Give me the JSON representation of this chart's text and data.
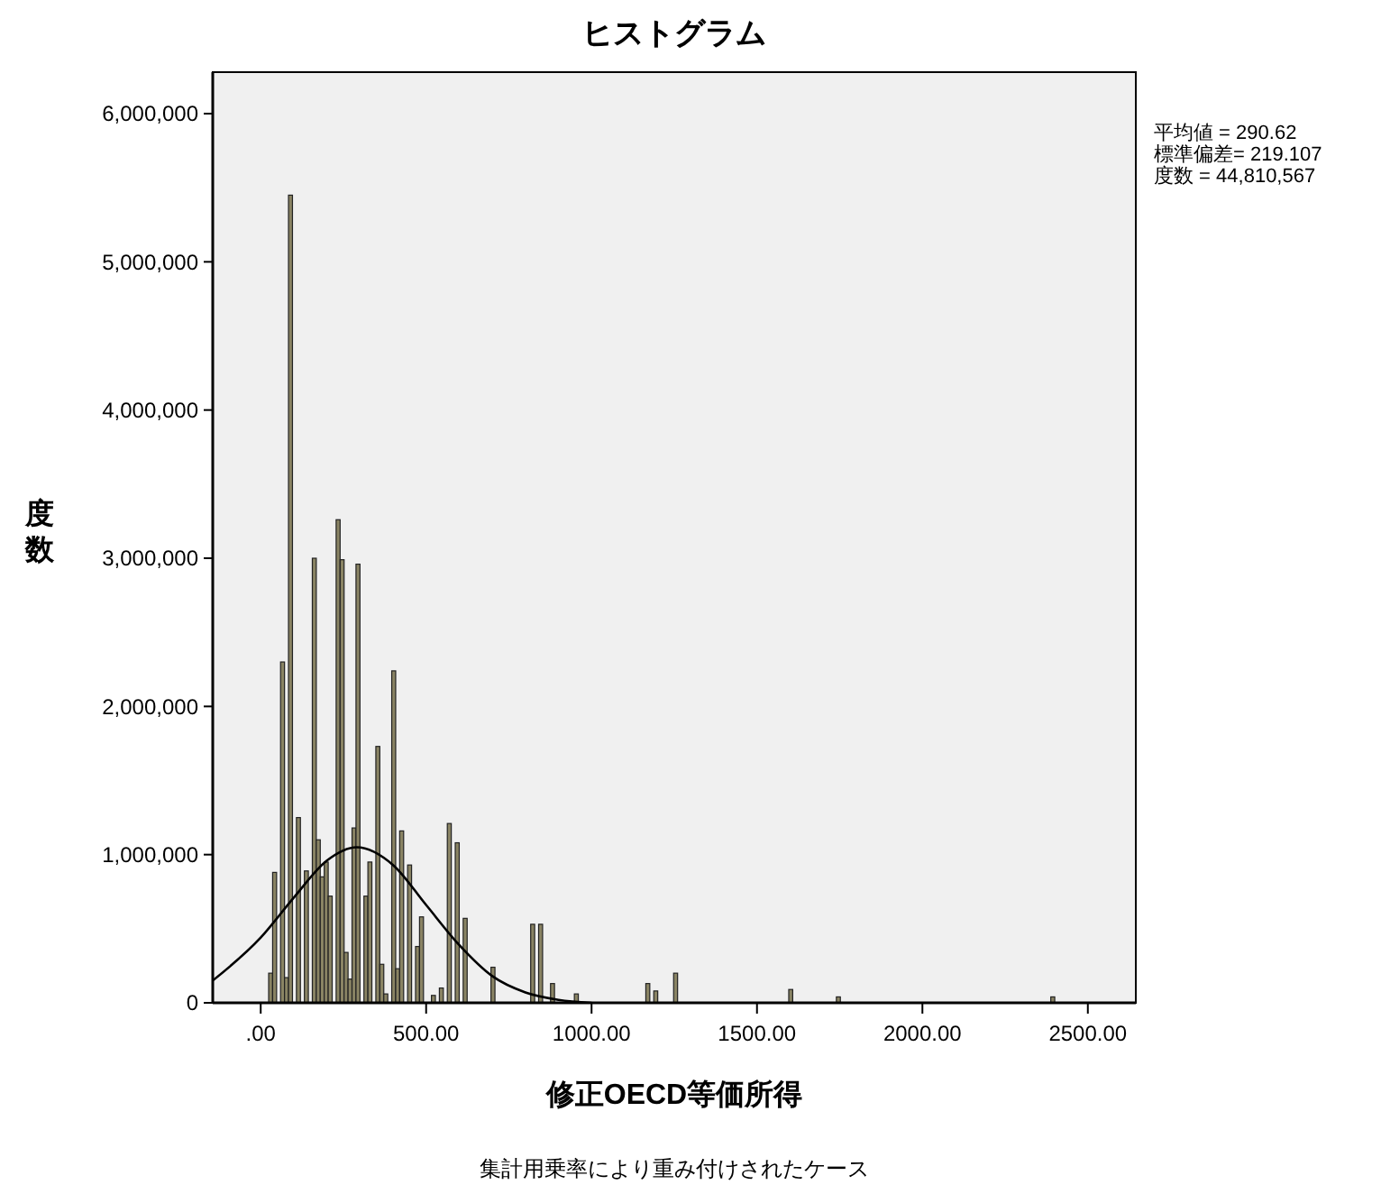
{
  "chart_data": {
    "type": "histogram",
    "title": "ヒストグラム",
    "xlabel": "修正OECD等価所得",
    "ylabel": "度数",
    "annotations": [
      "平均値 = 290.62",
      "標準偏差= 219.107",
      "度数 = 44,810,567",
      "集計用乗率により重み付けされたケース"
    ],
    "xlim": [
      -145,
      2645
    ],
    "ylim": [
      0,
      6280000
    ],
    "xticks": [
      {
        "value": 0,
        "label": ".00"
      },
      {
        "value": 500,
        "label": "500.00"
      },
      {
        "value": 1000,
        "label": "1000.00"
      },
      {
        "value": 1500,
        "label": "1500.00"
      },
      {
        "value": 2000,
        "label": "2000.00"
      },
      {
        "value": 2500,
        "label": "2500.00"
      }
    ],
    "yticks": [
      {
        "value": 0,
        "label": "0"
      },
      {
        "value": 1000000,
        "label": "1,000,000"
      },
      {
        "value": 2000000,
        "label": "2,000,000"
      },
      {
        "value": 3000000,
        "label": "3,000,000"
      },
      {
        "value": 4000000,
        "label": "4,000,000"
      },
      {
        "value": 5000000,
        "label": "5,000,000"
      },
      {
        "value": 6000000,
        "label": "6,000,000"
      }
    ],
    "bins": [
      24,
      36,
      48,
      60,
      72,
      84,
      96,
      108,
      120,
      132,
      144,
      156,
      168,
      180,
      192,
      204,
      216,
      228,
      240,
      252,
      264,
      276,
      288,
      300,
      312,
      324,
      336,
      348,
      360,
      372,
      384,
      396,
      408,
      420,
      432,
      444,
      456,
      468,
      480,
      492,
      516,
      528,
      540,
      552,
      564,
      576,
      588,
      600,
      612,
      624,
      696,
      708,
      816,
      828,
      840,
      852,
      876,
      888,
      948,
      960,
      1164,
      1176,
      1188,
      1200,
      1248,
      1260,
      1596,
      1608,
      1740,
      1752,
      2388,
      2400
    ],
    "series": [
      {
        "type": "histogram",
        "color": "#8a8464",
        "values": [
          200000,
          880000,
          0,
          2300000,
          170000,
          5450000,
          0,
          1250000,
          0,
          890000,
          0,
          3000000,
          1100000,
          850000,
          950000,
          720000,
          0,
          3260000,
          2990000,
          340000,
          160000,
          1180000,
          2960000,
          0,
          720000,
          950000,
          0,
          1730000,
          260000,
          60000,
          0,
          2240000,
          230000,
          1160000,
          0,
          930000,
          0,
          380000,
          580000,
          0,
          50000,
          0,
          100000,
          0,
          1210000,
          0,
          1080000,
          0,
          570000,
          0,
          240000,
          0,
          530000,
          0,
          530000,
          0,
          130000,
          0,
          60000,
          0,
          130000,
          0,
          80000,
          0,
          200000,
          0,
          90000,
          0,
          40000,
          0,
          40000
        ]
      },
      {
        "type": "line",
        "color": "#000000",
        "x": [
          -145,
          0,
          100,
          200,
          290,
          400,
          500,
          600,
          700,
          800,
          900,
          1000
        ],
        "values": [
          150000,
          440000,
          710000,
          960000,
          1050000,
          930000,
          660000,
          390000,
          180000,
          70000,
          20000,
          0
        ]
      }
    ]
  }
}
